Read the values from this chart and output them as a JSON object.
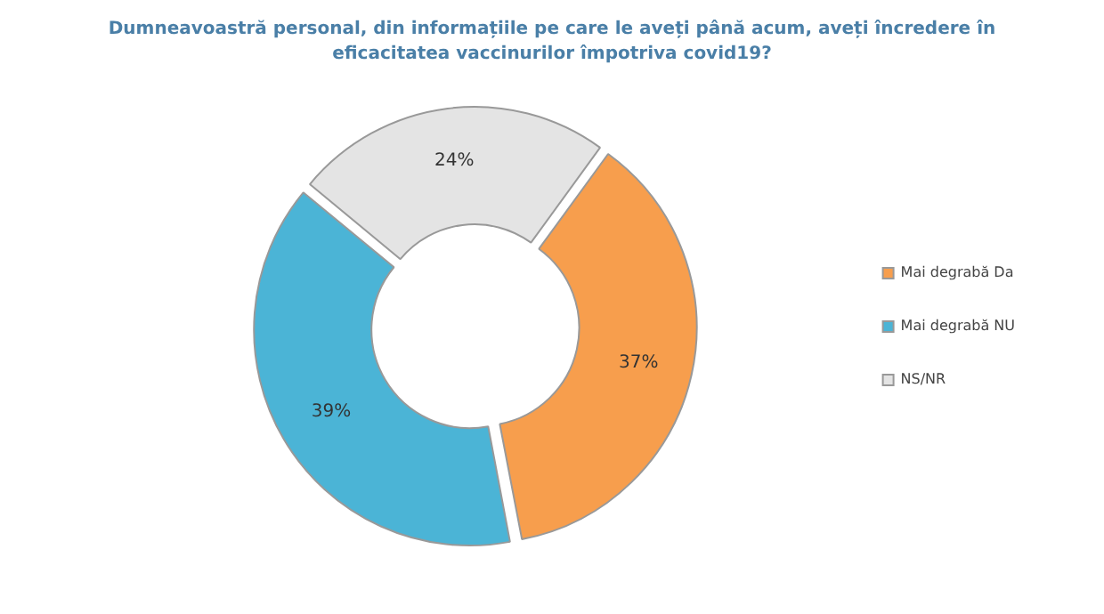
{
  "chart_data": {
    "type": "donut",
    "title": "Dumneavoastră personal, din informațiile pe care le aveți până acum, aveți încredere în eficacitatea vaccinurilor împotriva covid19?",
    "categories": [
      "Mai degrabă Da",
      "Mai degrabă NU",
      "NS/NR"
    ],
    "values": [
      37,
      39,
      24
    ],
    "colors": [
      "#f79e4d",
      "#4bb4d6",
      "#e4e4e4"
    ],
    "value_labels": [
      "37%",
      "39%",
      "24%"
    ],
    "legend": "right"
  }
}
